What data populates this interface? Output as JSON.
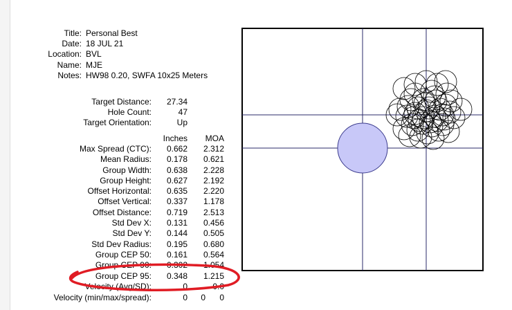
{
  "meta": [
    {
      "label": "Title:",
      "value": "Personal Best"
    },
    {
      "label": "Date:",
      "value": "18 JUL 21"
    },
    {
      "label": "Location:",
      "value": "BVL"
    },
    {
      "label": "Name:",
      "value": "MJE"
    },
    {
      "label": "Notes:",
      "value": "HW98 0.20, SWFA 10x25 Meters"
    }
  ],
  "info": [
    {
      "label": "Target Distance:",
      "value": "27.34"
    },
    {
      "label": "Hole Count:",
      "value": "47"
    },
    {
      "label": "Target Orientation:",
      "value": "Up"
    }
  ],
  "columns": {
    "inches": "Inches",
    "moa": "MOA"
  },
  "stats": [
    {
      "label": "Max Spread (CTC):",
      "inches": "0.662",
      "moa": "2.312"
    },
    {
      "label": "Mean Radius:",
      "inches": "0.178",
      "moa": "0.621"
    },
    {
      "label": "Group Width:",
      "inches": "0.638",
      "moa": "2.228"
    },
    {
      "label": "Group Height:",
      "inches": "0.627",
      "moa": "2.192"
    },
    {
      "label": "Offset Horizontal:",
      "inches": "0.635",
      "moa": "2.220"
    },
    {
      "label": "Offset Vertical:",
      "inches": "0.337",
      "moa": "1.178"
    },
    {
      "label": "Offset Distance:",
      "inches": "0.719",
      "moa": "2.513"
    },
    {
      "label": "Std Dev X:",
      "inches": "0.131",
      "moa": "0.456"
    },
    {
      "label": "Std Dev Y:",
      "inches": "0.144",
      "moa": "0.505"
    },
    {
      "label": "Std Dev Radius:",
      "inches": "0.195",
      "moa": "0.680"
    },
    {
      "label": "Group CEP 50:",
      "inches": "0.161",
      "moa": "0.564"
    },
    {
      "label": "Group CEP 90:",
      "inches": "0.302",
      "moa": "1.054"
    },
    {
      "label": "Group CEP 95:",
      "inches": "0.348",
      "moa": "1.215"
    }
  ],
  "velocity": [
    {
      "label": "Velocity (Avg/SD):",
      "a": "0",
      "b": "0.0"
    },
    {
      "label": "Velocity (min/max/spread):",
      "a": "0",
      "b": "0",
      "c": "0"
    }
  ],
  "colors": {
    "aim_fill": "#c8c8f8",
    "aim_stroke": "#3a3a8c",
    "crosshair": "#2a2a6a",
    "highlight": "#e01c24",
    "frame": "#000000"
  },
  "icons": {
    "aim_point": "filled-circle",
    "holes": "circle-outline"
  }
}
